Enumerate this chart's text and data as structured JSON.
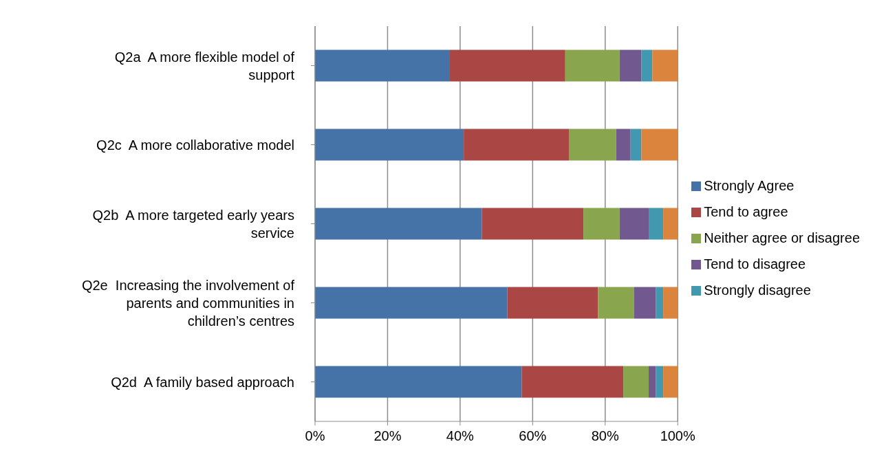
{
  "chart_data": {
    "type": "bar",
    "orientation": "horizontal",
    "stacked": true,
    "categories": [
      "Q2a  A more flexible model of support",
      "Q2c  A more collaborative model",
      "Q2b  A more targeted early years service",
      "Q2e  Increasing the involvement of parents and communities in children’s centres",
      "Q2d  A family based approach"
    ],
    "series": [
      {
        "name": "Strongly Agree",
        "color": "#4572a7",
        "values": [
          37,
          41,
          46,
          53,
          57
        ]
      },
      {
        "name": "Tend to agree",
        "color": "#aa4643",
        "values": [
          32,
          29,
          28,
          25,
          28
        ]
      },
      {
        "name": "Neither agree or disagree",
        "color": "#89a54e",
        "values": [
          15,
          13,
          10,
          10,
          7
        ]
      },
      {
        "name": "Tend to disagree",
        "color": "#71588f",
        "values": [
          6,
          4,
          8,
          6,
          2
        ]
      },
      {
        "name": "Strongly disagree",
        "color": "#4198af",
        "values": [
          3,
          3,
          4,
          2,
          2
        ]
      },
      {
        "color": "#db843d",
        "values": [
          7,
          10,
          4,
          4,
          4
        ]
      }
    ],
    "xlim": [
      0,
      100
    ],
    "xticks": [
      {
        "value": 0,
        "label": "0%"
      },
      {
        "value": 20,
        "label": "20%"
      },
      {
        "value": 40,
        "label": "40%"
      },
      {
        "value": 60,
        "label": "60%"
      },
      {
        "value": 80,
        "label": "80%"
      },
      {
        "value": 100,
        "label": "100%"
      }
    ],
    "grid": "x",
    "legend": "right"
  }
}
